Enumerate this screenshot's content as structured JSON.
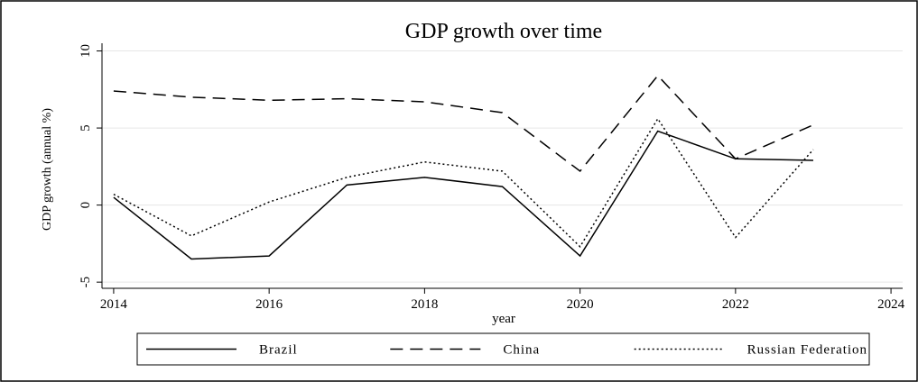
{
  "chart_data": {
    "type": "line",
    "title": "GDP growth over time",
    "xlabel": "year",
    "ylabel": "GDP growth (annual %)",
    "x": [
      2014,
      2015,
      2016,
      2017,
      2018,
      2019,
      2020,
      2021,
      2022,
      2023
    ],
    "series": [
      {
        "name": "Brazil",
        "color": "#000000",
        "style": "solid",
        "values": [
          0.5,
          -3.5,
          -3.3,
          1.3,
          1.8,
          1.2,
          -3.3,
          4.8,
          3.0,
          2.9
        ]
      },
      {
        "name": "China",
        "color": "#000000",
        "style": "dashed",
        "values": [
          7.4,
          7.0,
          6.8,
          6.9,
          6.7,
          6.0,
          2.2,
          8.4,
          3.0,
          5.2
        ]
      },
      {
        "name": "Russian Federation",
        "color": "#000000",
        "style": "dotted",
        "values": [
          0.7,
          -2.0,
          0.2,
          1.8,
          2.8,
          2.2,
          -2.7,
          5.6,
          -2.1,
          3.6
        ]
      }
    ],
    "xlim": [
      2013.85,
      2024.15
    ],
    "xticks": [
      2014,
      2016,
      2018,
      2020,
      2022,
      2024
    ],
    "ylim": [
      -5.4,
      10.5
    ],
    "yticks": [
      -5,
      0,
      5,
      10
    ],
    "grid": true,
    "legend": "bottom"
  }
}
